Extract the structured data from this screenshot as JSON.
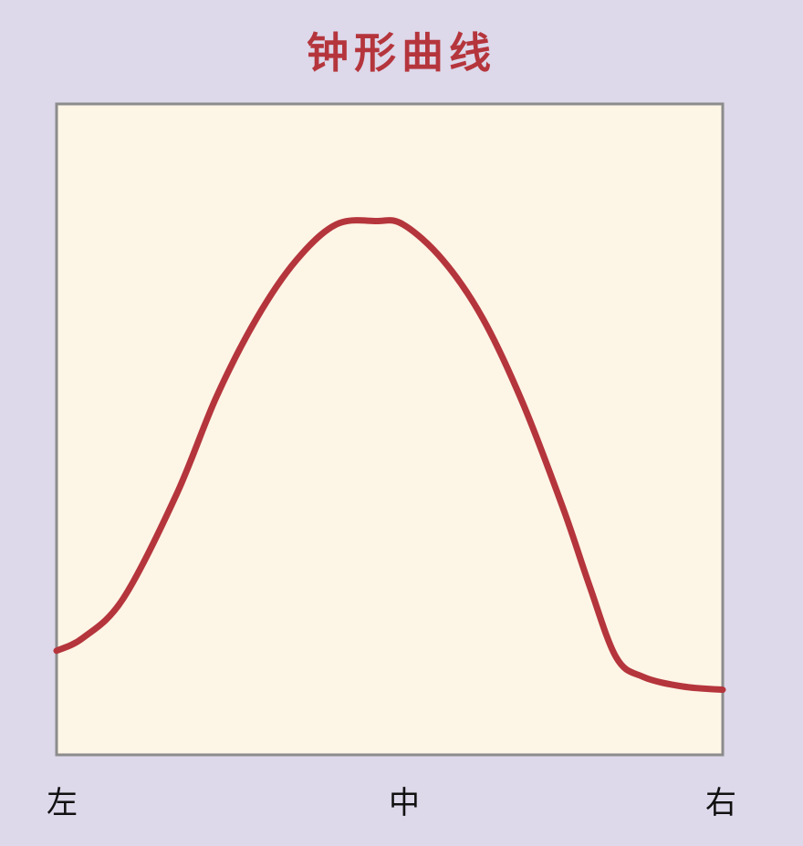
{
  "chart_data": {
    "type": "line",
    "title": "钟形曲线",
    "x_tick_labels": [
      "左",
      "中",
      "右"
    ],
    "xlim": [
      0,
      100
    ],
    "ylim": [
      0,
      100
    ],
    "grid": false,
    "legend": "none",
    "series": [
      {
        "x": [
          0,
          4,
          10,
          18,
          24,
          30,
          36,
          42,
          48,
          52,
          58,
          64,
          70,
          76,
          80,
          84,
          88,
          94,
          100
        ],
        "y": [
          16,
          18,
          24,
          40,
          55,
          67,
          76,
          81.5,
          82,
          81.5,
          76,
          67,
          54,
          38,
          26,
          15,
          12,
          10.5,
          10
        ]
      }
    ],
    "colors": {
      "background": "#ddd8ea",
      "plot_area": "#fdf5e6",
      "frame": "#8c8c8c",
      "curve": "#b5353c",
      "title": "#b5353c",
      "tick_label": "#111111"
    }
  }
}
